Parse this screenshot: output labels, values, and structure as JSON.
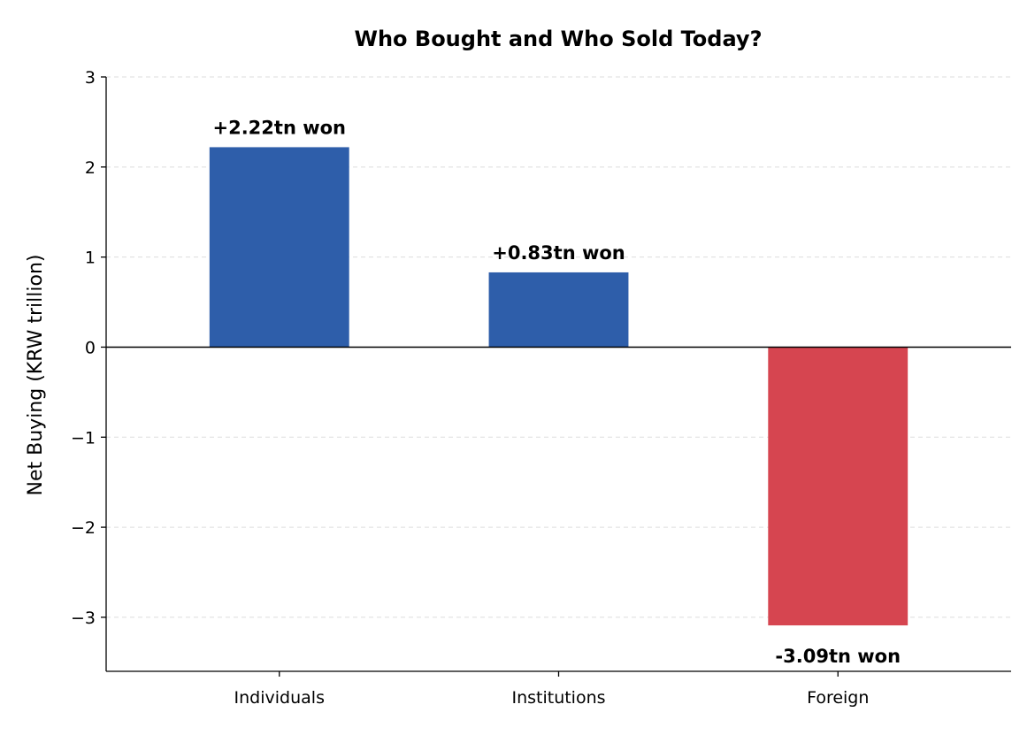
{
  "chart_data": {
    "type": "bar",
    "title": "Who Bought and Who Sold Today?",
    "xlabel": "",
    "ylabel": "Net Buying (KRW trillion)",
    "categories": [
      "Individuals",
      "Institutions",
      "Foreign"
    ],
    "values": [
      2.22,
      0.83,
      -3.09
    ],
    "data_labels": [
      "+2.22tn won",
      "+0.83tn won",
      "-3.09tn won"
    ],
    "colors": [
      "#2e5eaa",
      "#2e5eaa",
      "#d64550"
    ],
    "ylim": [
      -3.6,
      3
    ],
    "yticks": [
      3,
      2,
      1,
      0,
      -1,
      -2,
      -3
    ],
    "ytick_labels": [
      "3",
      "2",
      "1",
      "0",
      "−1",
      "−2",
      "−3"
    ],
    "grid": "y, dashed",
    "legend": "none",
    "zero_line": true
  }
}
